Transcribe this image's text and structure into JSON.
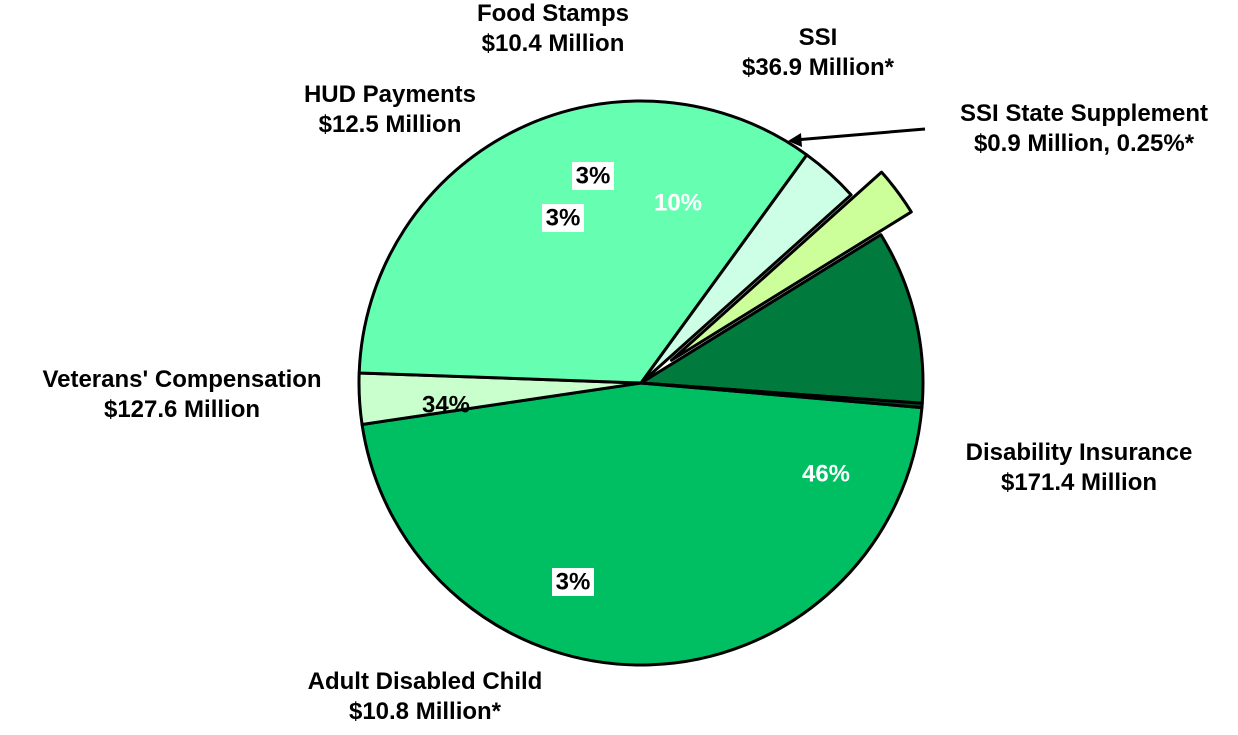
{
  "chart_data": {
    "type": "pie",
    "title": "",
    "slices": [
      {
        "name": "Disability Insurance",
        "amount": "$171.4 Million",
        "value": 171.4,
        "percent_label": "46%",
        "color": "#00bf63",
        "label_color": "#ffffff",
        "label_boxed": false,
        "exploded": false
      },
      {
        "name": "Adult Disabled Child",
        "amount": "$10.8 Million*",
        "value": 10.8,
        "percent_label": "3%",
        "color": "#c8ffcc",
        "label_color": "#000000",
        "label_boxed": true,
        "exploded": false
      },
      {
        "name": "Veterans' Compensation",
        "amount": "$127.6 Million",
        "value": 127.6,
        "percent_label": "34%",
        "color": "#66ffb2",
        "label_color": "#000000",
        "label_boxed": false,
        "exploded": false
      },
      {
        "name": "HUD Payments",
        "amount": "$12.5 Million",
        "value": 12.5,
        "percent_label": "3%",
        "color": "#ccffe6",
        "label_color": "#000000",
        "label_boxed": true,
        "exploded": false
      },
      {
        "name": "Food Stamps",
        "amount": "$10.4 Million",
        "value": 10.4,
        "percent_label": "3%",
        "color": "#ccff99",
        "label_color": "#000000",
        "label_boxed": true,
        "exploded": true
      },
      {
        "name": "SSI",
        "amount": "$36.9 Million*",
        "value": 36.9,
        "percent_label": "10%",
        "color": "#007a3d",
        "label_color": "#ffffff",
        "label_boxed": false,
        "exploded": false
      },
      {
        "name": "SSI State Supplement",
        "amount": "$0.9 Million, 0.25%*",
        "value": 0.9,
        "percent_label": "",
        "color": "#004d26",
        "label_color": "#000000",
        "label_boxed": false,
        "exploded": false
      }
    ],
    "legend": "none"
  }
}
